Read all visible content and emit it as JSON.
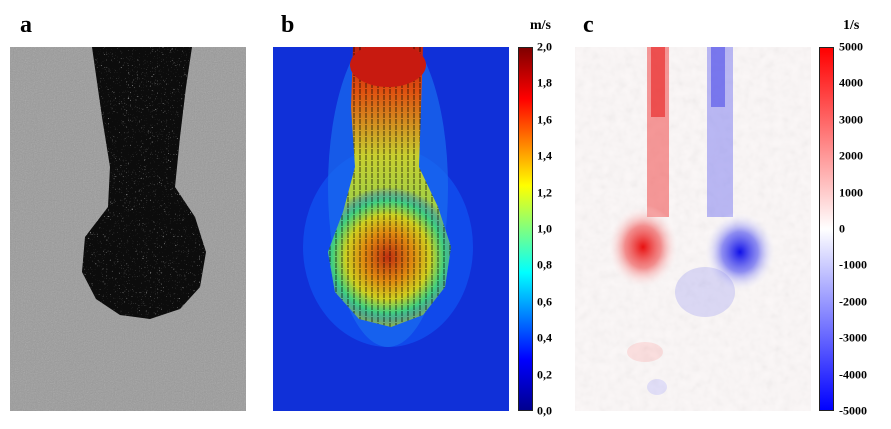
{
  "panels": {
    "a": {
      "label": "a"
    },
    "b": {
      "label": "b",
      "unit": "m/s",
      "ticks": [
        "2,0",
        "1,8",
        "1,6",
        "1,4",
        "1,2",
        "1,0",
        "0,8",
        "0,6",
        "0,4",
        "0,2",
        "0,0"
      ],
      "colormap": [
        "#00008f",
        "#0000ff",
        "#00ffff",
        "#ffff00",
        "#ff0000",
        "#800000"
      ]
    },
    "c": {
      "label": "c",
      "unit": "1/s",
      "ticks": [
        "5000",
        "4000",
        "3000",
        "2000",
        "1000",
        "0",
        "-1000",
        "-2000",
        "-3000",
        "-4000",
        "-5000"
      ],
      "colormap": [
        "#0000ff",
        "#ffffff",
        "#ff0000"
      ]
    }
  }
}
